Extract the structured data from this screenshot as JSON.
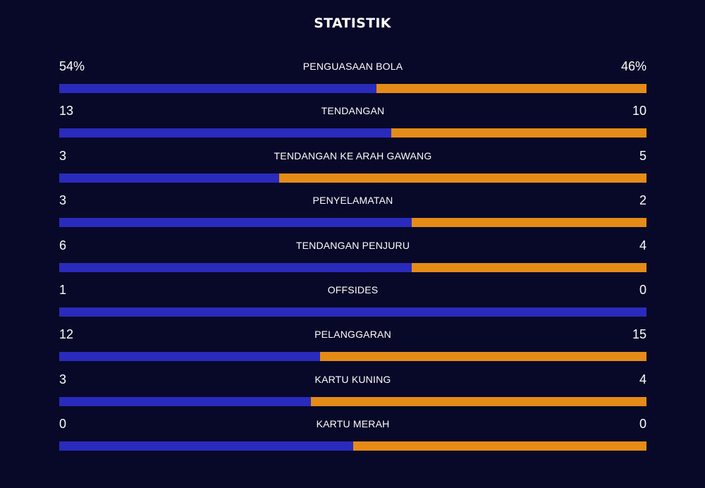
{
  "title": "STATISTIK",
  "colors": {
    "home": "#2a2bbd",
    "away": "#e48c17",
    "background": "#080828"
  },
  "stats": [
    {
      "label": "PENGUASAAN BOLA",
      "home": "54%",
      "away": "46%",
      "home_share": 0.54
    },
    {
      "label": "TENDANGAN",
      "home": "13",
      "away": "10",
      "home_share": 0.565
    },
    {
      "label": "TENDANGAN KE ARAH GAWANG",
      "home": "3",
      "away": "5",
      "home_share": 0.375
    },
    {
      "label": "PENYELAMATAN",
      "home": "3",
      "away": "2",
      "home_share": 0.6
    },
    {
      "label": "TENDANGAN PENJURU",
      "home": "6",
      "away": "4",
      "home_share": 0.6
    },
    {
      "label": "OFFSIDES",
      "home": "1",
      "away": "0",
      "home_share": 1.0
    },
    {
      "label": "PELANGGARAN",
      "home": "12",
      "away": "15",
      "home_share": 0.444
    },
    {
      "label": "KARTU KUNING",
      "home": "3",
      "away": "4",
      "home_share": 0.429
    },
    {
      "label": "KARTU MERAH",
      "home": "0",
      "away": "0",
      "home_share": 0.5
    }
  ]
}
